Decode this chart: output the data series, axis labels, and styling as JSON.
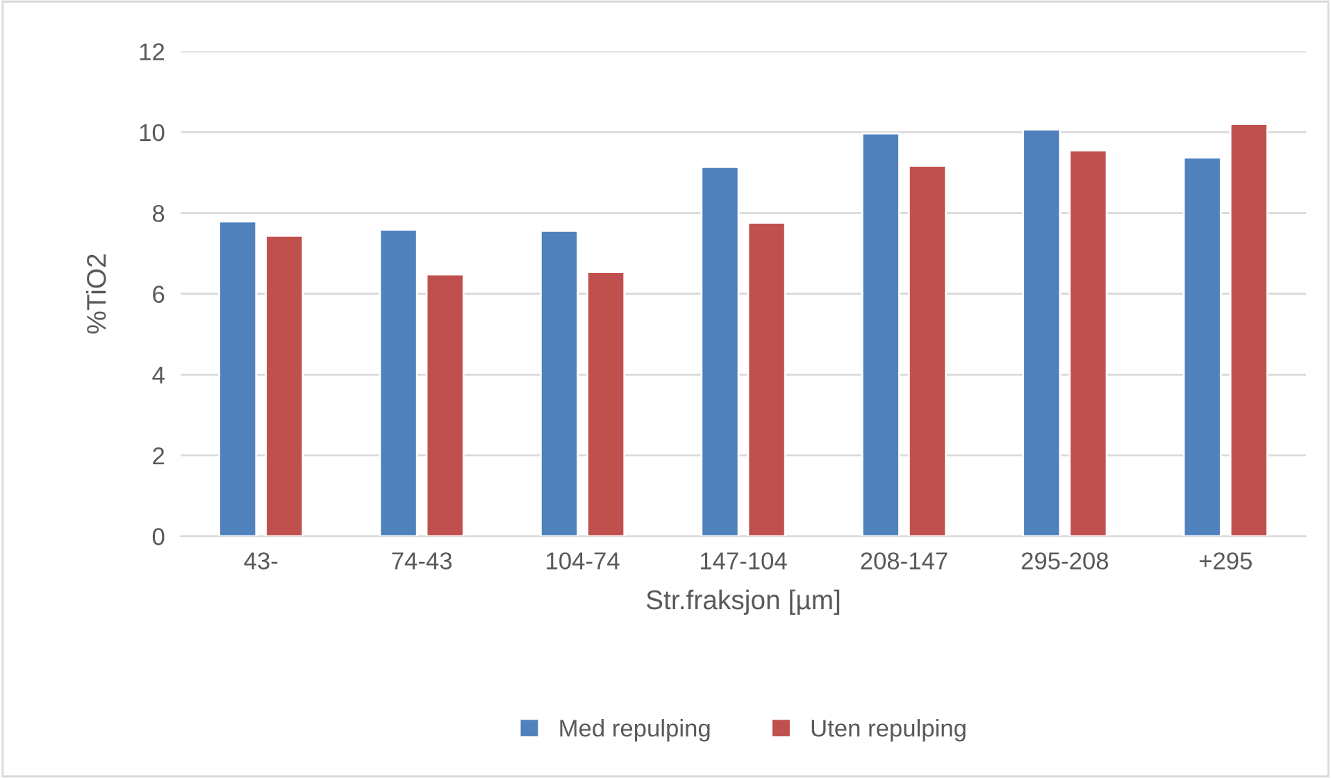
{
  "chart_data": {
    "type": "bar",
    "xlabel": "Str.fraksjon [µm]",
    "ylabel": "%TiO2",
    "categories": [
      "43-",
      "74-43",
      "104-74",
      "147-104",
      "208-147",
      "295-208",
      "+295"
    ],
    "series": [
      {
        "name": "Med repulping",
        "color": "#4f81bd",
        "values": [
          7.79,
          7.59,
          7.56,
          9.14,
          9.97,
          10.07,
          9.37
        ]
      },
      {
        "name": "Uten repulping",
        "color": "#c0504d",
        "values": [
          7.44,
          6.48,
          6.54,
          7.76,
          9.17,
          9.55,
          10.2
        ]
      }
    ],
    "ylim": [
      0,
      12
    ],
    "yticks": [
      0,
      2,
      4,
      6,
      8,
      10,
      12
    ],
    "grid": "y",
    "legend": "bottom"
  }
}
